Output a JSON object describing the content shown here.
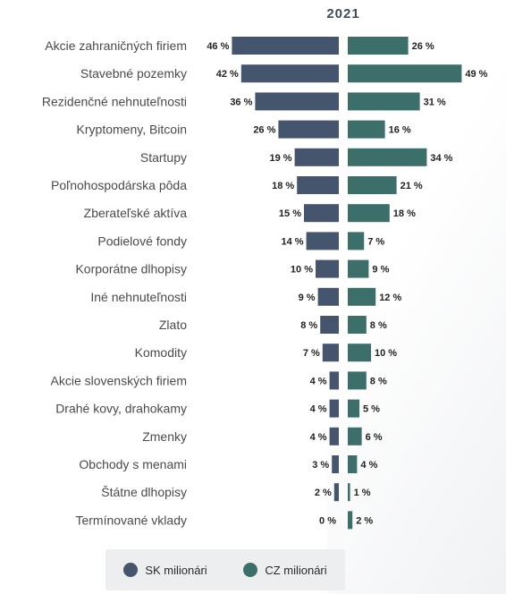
{
  "chart_data": {
    "type": "bar",
    "orientation": "horizontal-diverging",
    "title": "2021",
    "categories": [
      "Akcie zahraničných firiem",
      "Stavebné pozemky",
      "Rezidenčné nehnuteľnosti",
      "Kryptomeny, Bitcoin",
      "Startupy",
      "Poľnohospodárska pôda",
      "Zberateľské aktíva",
      "Podielové fondy",
      "Korporátne dlhopisy",
      "Iné nehnuteľnosti",
      "Zlato",
      "Komodity",
      "Akcie slovenských firiem",
      "Drahé kovy, drahokamy",
      "Zmenky",
      "Obchody s menami",
      "Štátne dlhopisy",
      "Termínované vklady"
    ],
    "series": [
      {
        "name": "SK milionári",
        "color": "#46556e",
        "values": [
          46,
          42,
          36,
          26,
          19,
          18,
          15,
          14,
          10,
          9,
          8,
          7,
          4,
          4,
          4,
          3,
          2,
          0
        ]
      },
      {
        "name": "CZ milionári",
        "color": "#3c6e6a",
        "values": [
          26,
          49,
          31,
          16,
          34,
          21,
          18,
          7,
          9,
          12,
          8,
          10,
          8,
          5,
          6,
          4,
          1,
          2
        ]
      }
    ],
    "value_suffix": " %",
    "legend_position": "bottom"
  }
}
